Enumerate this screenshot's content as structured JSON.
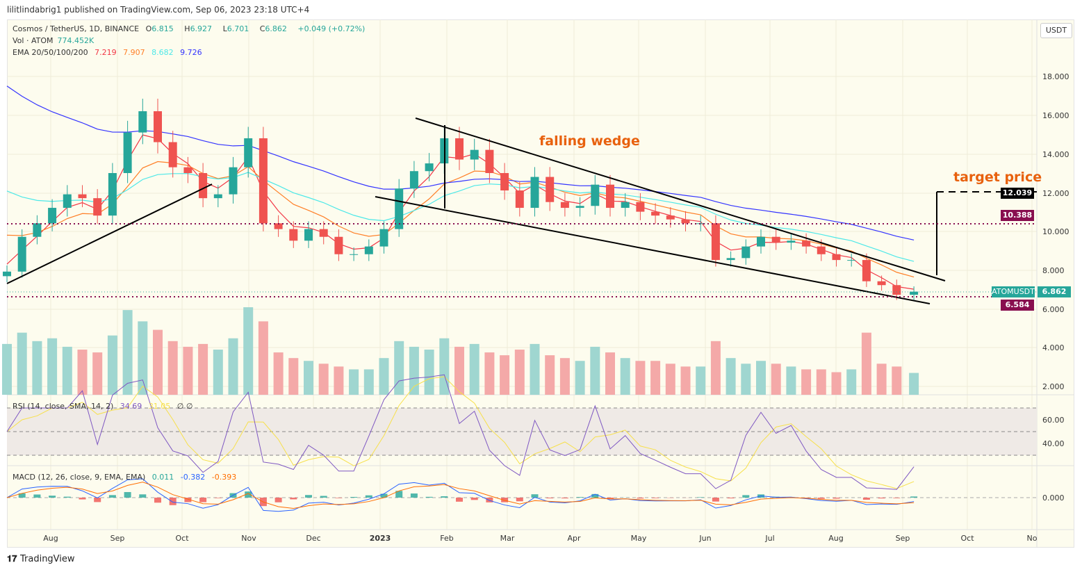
{
  "header": {
    "published": "lilitlindabrig1 published on TradingView.com, Sep 06, 2023 23:18 UTC+4"
  },
  "legend": {
    "symbol": "Cosmos / TetherUS, 1D, BINANCE",
    "open_label": "O",
    "open": "6.815",
    "high_label": "H",
    "high": "6.927",
    "low_label": "L",
    "low": "6.701",
    "close_label": "C",
    "close": "6.862",
    "change": "+0.049 (+0.72%)",
    "vol_label": "Vol · ATOM",
    "vol": "774.452K",
    "ema_label": "EMA 20/50/100/200",
    "ema20": "7.219",
    "ema50": "7.907",
    "ema100": "8.682",
    "ema200": "9.726",
    "rsi_label": "RSI (14, close, SMA, 14, 2)",
    "rsi": "34.69",
    "rsi_sma": "31.05",
    "rsi_extra": "∅ ∅",
    "macd_label": "MACD (12, 26, close, 9, EMA, EMA)",
    "macd_hist": "0.011",
    "macd": "-0.382",
    "macd_signal": "-0.393"
  },
  "currency_button": "USDT",
  "annotations": {
    "falling_wedge": "falling wedge",
    "target_price": "target price"
  },
  "price_tags": {
    "target": "12.039",
    "resistance": "10.388",
    "symbol": "ATOMUSDT",
    "last": "6.862",
    "support": "6.584"
  },
  "footer": {
    "brand": "TradingView"
  },
  "colors": {
    "up": "#26a69a",
    "down": "#ef5350",
    "ema20": "#f23645",
    "ema50": "#ff7f27",
    "ema100": "#4de8e8",
    "ema200": "#3333ff",
    "rsi": "#7e57c2",
    "rsi_sma": "#f7e04b",
    "accent": "#e8610e",
    "level": "#880e4f"
  },
  "chart_data": {
    "type": "candlestick",
    "symbol": "ATOMUSDT",
    "price_ticks": [
      "18.000",
      "16.000",
      "14.000",
      "12.000",
      "10.000",
      "8.000",
      "6.000",
      "4.000",
      "2.000"
    ],
    "rsi_ticks": [
      "60.00",
      "40.00"
    ],
    "macd_ticks": [
      "0.000"
    ],
    "time_ticks": [
      "Aug",
      "Sep",
      "Oct",
      "Nov",
      "Dec",
      "2023",
      "Feb",
      "Mar",
      "Apr",
      "May",
      "Jun",
      "Jul",
      "Aug",
      "Sep",
      "Oct",
      "No"
    ],
    "levels": {
      "target": 12.039,
      "resistance": 10.388,
      "support": 6.584
    },
    "ema_start": {
      "ema20": 8.7,
      "ema50": 10.4,
      "ema100": 12.7,
      "ema200": 18.2
    },
    "weekly_close": [
      [
        "2022-07-12",
        7.9
      ],
      [
        "2022-07-19",
        9.7
      ],
      [
        "2022-07-26",
        10.4
      ],
      [
        "2022-08-02",
        11.2
      ],
      [
        "2022-08-09",
        11.9
      ],
      [
        "2022-08-16",
        11.7
      ],
      [
        "2022-08-23",
        10.8
      ],
      [
        "2022-08-30",
        13.0
      ],
      [
        "2022-09-06",
        15.1
      ],
      [
        "2022-09-13",
        16.2
      ],
      [
        "2022-09-20",
        14.6
      ],
      [
        "2022-09-27",
        13.3
      ],
      [
        "2022-10-04",
        13.0
      ],
      [
        "2022-10-11",
        11.7
      ],
      [
        "2022-10-18",
        11.9
      ],
      [
        "2022-10-25",
        13.3
      ],
      [
        "2022-11-01",
        14.8
      ],
      [
        "2022-11-08",
        10.4
      ],
      [
        "2022-11-15",
        10.1
      ],
      [
        "2022-11-22",
        9.5
      ],
      [
        "2022-11-29",
        10.1
      ],
      [
        "2022-12-06",
        9.7
      ],
      [
        "2022-12-13",
        8.8
      ],
      [
        "2022-12-20",
        8.8
      ],
      [
        "2022-12-27",
        9.2
      ],
      [
        "2023-01-03",
        10.1
      ],
      [
        "2023-01-10",
        12.2
      ],
      [
        "2023-01-17",
        13.1
      ],
      [
        "2023-01-24",
        13.5
      ],
      [
        "2023-01-31",
        14.8
      ],
      [
        "2023-02-07",
        13.7
      ],
      [
        "2023-02-14",
        14.2
      ],
      [
        "2023-02-21",
        13.0
      ],
      [
        "2023-02-28",
        12.1
      ],
      [
        "2023-03-07",
        11.2
      ],
      [
        "2023-03-14",
        12.8
      ],
      [
        "2023-03-21",
        11.5
      ],
      [
        "2023-03-28",
        11.2
      ],
      [
        "2023-04-04",
        11.3
      ],
      [
        "2023-04-11",
        12.4
      ],
      [
        "2023-04-18",
        11.2
      ],
      [
        "2023-04-25",
        11.5
      ],
      [
        "2023-05-02",
        11.0
      ],
      [
        "2023-05-09",
        10.8
      ],
      [
        "2023-05-16",
        10.6
      ],
      [
        "2023-05-23",
        10.4
      ],
      [
        "2023-05-30",
        10.4
      ],
      [
        "2023-06-06",
        8.5
      ],
      [
        "2023-06-13",
        8.6
      ],
      [
        "2023-06-20",
        9.2
      ],
      [
        "2023-06-27",
        9.7
      ],
      [
        "2023-07-04",
        9.4
      ],
      [
        "2023-07-11",
        9.5
      ],
      [
        "2023-07-18",
        9.2
      ],
      [
        "2023-07-25",
        8.8
      ],
      [
        "2023-08-01",
        8.5
      ],
      [
        "2023-08-08",
        8.5
      ],
      [
        "2023-08-15",
        7.4
      ],
      [
        "2023-08-22",
        7.2
      ],
      [
        "2023-08-29",
        6.7
      ],
      [
        "2023-09-06",
        6.862
      ]
    ],
    "weekly_volume_k": [
      1800,
      2200,
      1900,
      2000,
      1700,
      1600,
      1500,
      2100,
      3000,
      2600,
      2300,
      1900,
      1700,
      1800,
      1600,
      2000,
      3100,
      2600,
      1500,
      1300,
      1200,
      1100,
      1000,
      900,
      900,
      1300,
      1900,
      1700,
      1600,
      2000,
      1700,
      1800,
      1500,
      1400,
      1600,
      1800,
      1400,
      1300,
      1200,
      1700,
      1500,
      1300,
      1200,
      1200,
      1100,
      1000,
      1000,
      1900,
      1300,
      1100,
      1200,
      1100,
      1000,
      900,
      900,
      800,
      900,
      2200,
      1100,
      1000,
      774
    ]
  }
}
